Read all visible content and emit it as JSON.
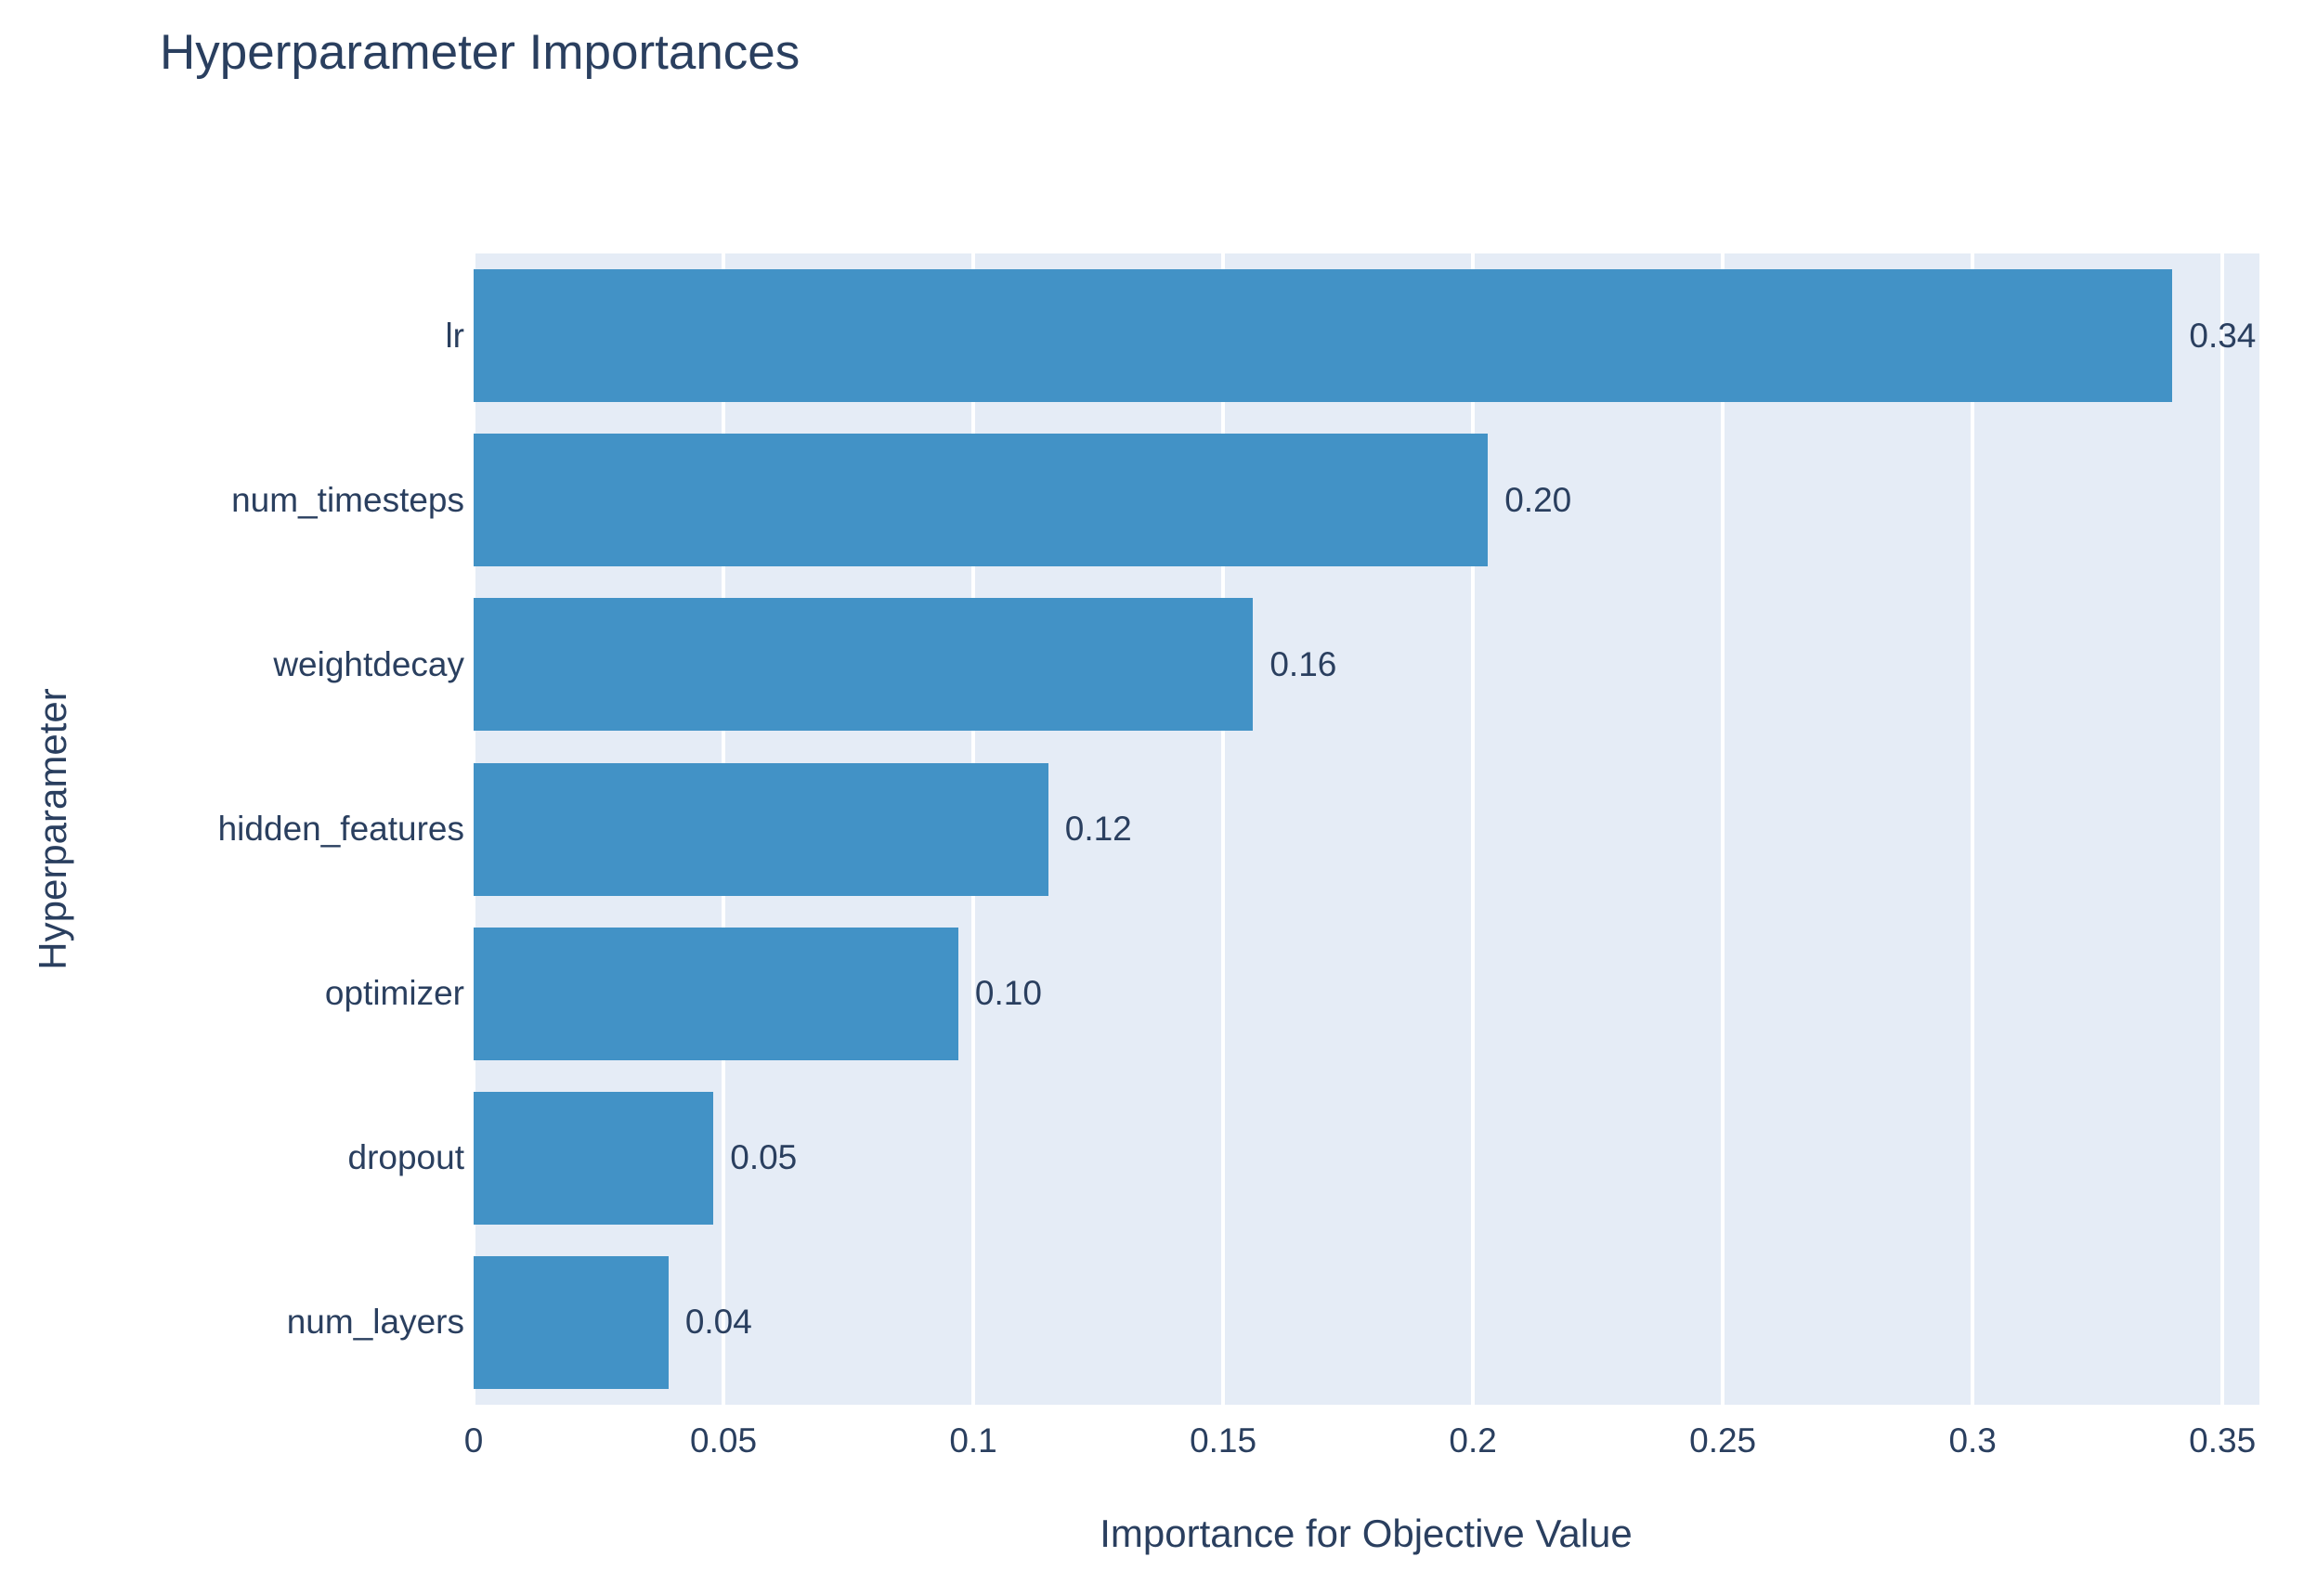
{
  "chart_data": {
    "type": "bar",
    "orientation": "horizontal",
    "title": "Hyperparameter Importances",
    "xlabel": "Importance for Objective Value",
    "ylabel": "Hyperparameter",
    "categories": [
      "lr",
      "num_timesteps",
      "weightdecay",
      "hidden_features",
      "optimizer",
      "dropout",
      "num_layers"
    ],
    "values": [
      0.34,
      0.203,
      0.156,
      0.115,
      0.097,
      0.048,
      0.039
    ],
    "value_labels": [
      "0.34",
      "0.20",
      "0.16",
      "0.12",
      "0.10",
      "0.05",
      "0.04"
    ],
    "x_ticks": [
      0,
      0.05,
      0.1,
      0.15,
      0.2,
      0.25,
      0.3,
      0.35
    ],
    "x_tick_labels": [
      "0",
      "0.05",
      "0.1",
      "0.15",
      "0.2",
      "0.25",
      "0.3",
      "0.35"
    ],
    "xlim": [
      0,
      0.3574
    ],
    "grid": true,
    "legend_visible": false,
    "colors": {
      "bar": "#4292c6",
      "plot_background": "#e5ecf6",
      "grid_line": "#ffffff",
      "text": "#2a3f5f"
    }
  }
}
